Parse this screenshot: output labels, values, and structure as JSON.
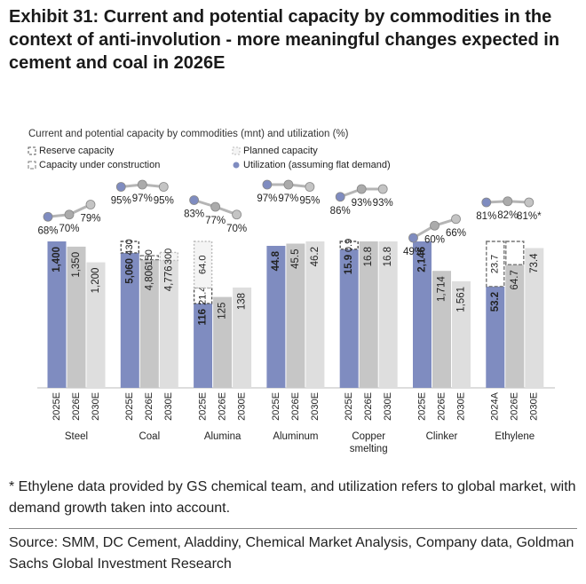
{
  "title": "Exhibit 31: Current and potential capacity by commodities in the context of anti-involution - more meaningful changes expected in cement and coal in 2026E",
  "footnote": "* Ethylene data provided by GS chemical team, and utilization refers to global market, with demand growth taken into account.",
  "source": "Source: SMM, DC Cement, Aladdiny, Chemical Market Analysis, Company data, Goldman Sachs Global Investment Research",
  "chart_data": {
    "type": "grouped_stacked_bar",
    "title": "Current and potential capacity by commodities (mnt) and utilization (%)",
    "bar_colors": [
      "#7f8cc0",
      "#c6c6c6",
      "#dedede"
    ],
    "utilization_colors": [
      "#7f8cc0",
      "#ababab",
      "#c4c4c4"
    ],
    "legend": [
      {
        "name": "Reserve capacity",
        "stroke": "#555555",
        "fill": "#ffffff",
        "dash": "3,2"
      },
      {
        "name": "Planned capacity",
        "stroke": "#bbbbbb",
        "fill": "#f4f4f4",
        "dash": "2,2"
      },
      {
        "name": "Capacity under construction",
        "stroke": "#777777",
        "fill": "#ffffff",
        "dash": "4,2"
      },
      {
        "name": "Utilization (assuming flat demand)",
        "marker": "circle",
        "color": "#7f8cc0"
      }
    ],
    "groups": [
      {
        "name": "Steel",
        "periods": [
          "2025E",
          "2026E",
          "2030E"
        ],
        "capacity": [
          1400,
          1350,
          1200
        ],
        "capacity_labels": [
          "1,400",
          "1,350",
          "1,200"
        ],
        "utilization": [
          68,
          70,
          79
        ],
        "utilization_labels": [
          "68%",
          "70%",
          "79%"
        ],
        "additions": []
      },
      {
        "name": "Coal",
        "periods": [
          "2025E",
          "2026E",
          "2030E"
        ],
        "capacity": [
          5060,
          4806,
          4776
        ],
        "capacity_labels": [
          "5,060",
          "4,806",
          "4,776"
        ],
        "utilization": [
          95,
          97,
          95
        ],
        "utilization_labels": [
          "95%",
          "97%",
          "95%"
        ],
        "additions": [
          {
            "bar": 0,
            "kind": 0,
            "value": 430
          },
          {
            "bar": 1,
            "kind": 2,
            "value": 150
          },
          {
            "bar": 2,
            "kind": 1,
            "value": 300
          }
        ]
      },
      {
        "name": "Alumina",
        "periods": [
          "2025E",
          "2026E",
          "2030E"
        ],
        "capacity": [
          116,
          125,
          138
        ],
        "utilization": [
          83,
          77,
          70
        ],
        "utilization_labels": [
          "83%",
          "77%",
          "70%"
        ],
        "additions": [
          {
            "bar": 0,
            "kind": 0,
            "value": 21.4
          },
          {
            "bar": 0,
            "kind": 1,
            "value": 64,
            "label": "64.0"
          }
        ]
      },
      {
        "name": "Aluminum",
        "periods": [
          "2025E",
          "2026E",
          "2030E"
        ],
        "capacity": [
          44.8,
          45.5,
          46.2
        ],
        "utilization": [
          97,
          97,
          95
        ],
        "utilization_labels": [
          "97%",
          "97%",
          "95%"
        ],
        "additions": []
      },
      {
        "name": "Copper smelting",
        "periods": [
          "2025E",
          "2026E",
          "2030E"
        ],
        "capacity": [
          15.9,
          16.8,
          16.8
        ],
        "utilization": [
          86,
          93,
          93
        ],
        "utilization_labels": [
          "86%",
          "93%",
          "93%"
        ],
        "additions": [
          {
            "bar": 0,
            "kind": 0,
            "value": 0.9
          }
        ]
      },
      {
        "name": "Clinker",
        "periods": [
          "2025E",
          "2026E",
          "2030E"
        ],
        "capacity": [
          2146,
          1714,
          1561
        ],
        "capacity_labels": [
          "2,146",
          "1,714",
          "1,561"
        ],
        "utilization": [
          49,
          60,
          66
        ],
        "utilization_labels": [
          "49%",
          "60%",
          "66%"
        ],
        "additions": []
      },
      {
        "name": "Ethylene",
        "periods": [
          "2024A",
          "2026E",
          "2030E"
        ],
        "capacity": [
          53.2,
          64.7,
          73.4
        ],
        "utilization": [
          81,
          82,
          81
        ],
        "utilization_labels": [
          "81%",
          "82%",
          "81%*"
        ],
        "additions": [
          {
            "bar": 0,
            "kind": 2,
            "value": 23.7
          },
          {
            "bar": 1,
            "kind": 2,
            "value": 12.2,
            "unlabeled": true
          }
        ]
      }
    ]
  }
}
